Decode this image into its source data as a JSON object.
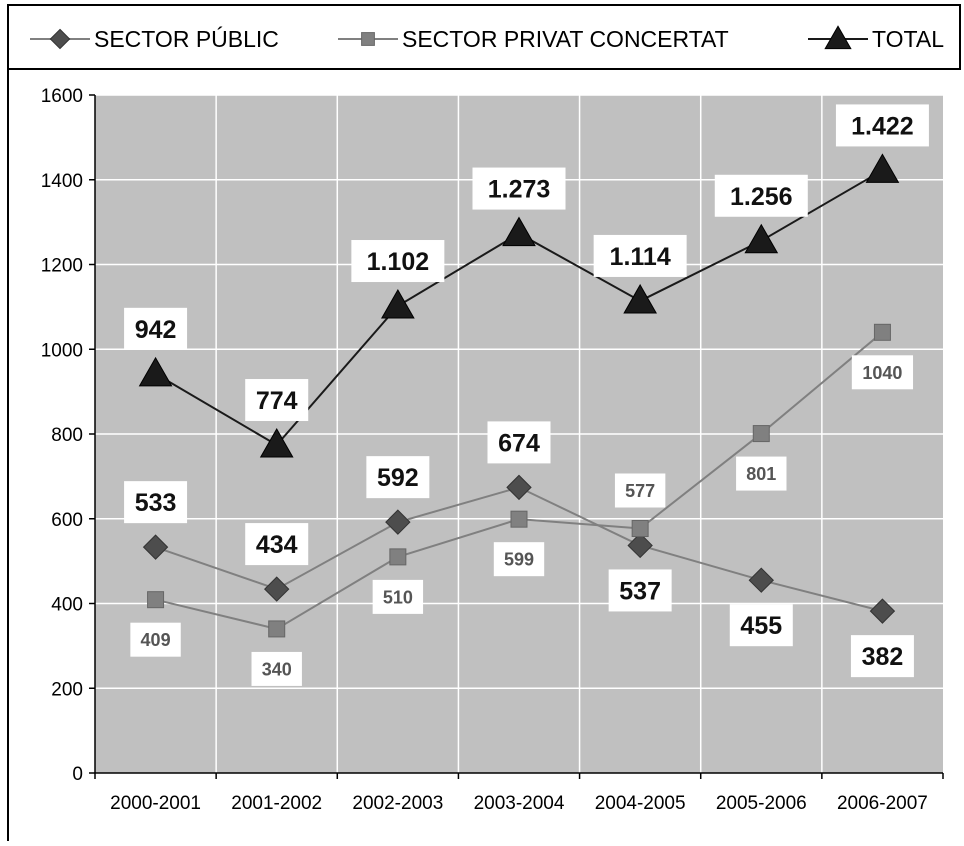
{
  "chart_data": {
    "type": "line",
    "categories": [
      "2000-2001",
      "2001-2002",
      "2002-2003",
      "2003-2004",
      "2004-2005",
      "2005-2006",
      "2006-2007"
    ],
    "ylim": [
      0,
      1600
    ],
    "yticks": [
      0,
      200,
      400,
      600,
      800,
      1000,
      1200,
      1400,
      1600
    ],
    "grid": true,
    "legend_position": "top",
    "series": [
      {
        "name": "SECTOR PÚBLIC",
        "marker": "diamond",
        "color": "#4d4d4d",
        "line_color": "#808080",
        "values": [
          533,
          434,
          592,
          674,
          537,
          455,
          382
        ],
        "labels": [
          "533",
          "434",
          "592",
          "674",
          "537",
          "455",
          "382"
        ],
        "label_placement": [
          "above",
          "above",
          "above",
          "above",
          "below",
          "below",
          "below"
        ]
      },
      {
        "name": "SECTOR PRIVAT CONCERTAT",
        "marker": "square",
        "color": "#808080",
        "line_color": "#808080",
        "values": [
          409,
          340,
          510,
          599,
          577,
          801,
          1040
        ],
        "labels": [
          "409",
          "340",
          "510",
          "599",
          "577",
          "801",
          "1040"
        ],
        "label_placement": [
          "below",
          "below",
          "below",
          "below",
          "above",
          "below",
          "below"
        ]
      },
      {
        "name": "TOTAL",
        "marker": "triangle",
        "color": "#1a1a1a",
        "line_color": "#1a1a1a",
        "values": [
          942,
          774,
          1102,
          1273,
          1114,
          1256,
          1422
        ],
        "labels": [
          "942",
          "774",
          "1.102",
          "1.273",
          "1.114",
          "1.256",
          "1.422"
        ],
        "label_placement": [
          "above",
          "above",
          "above",
          "above",
          "above",
          "above",
          "above"
        ]
      }
    ]
  },
  "colors": {
    "plot_background": "#c0c0c0",
    "gridline": "#ffffff",
    "label_box": "#ffffff"
  }
}
